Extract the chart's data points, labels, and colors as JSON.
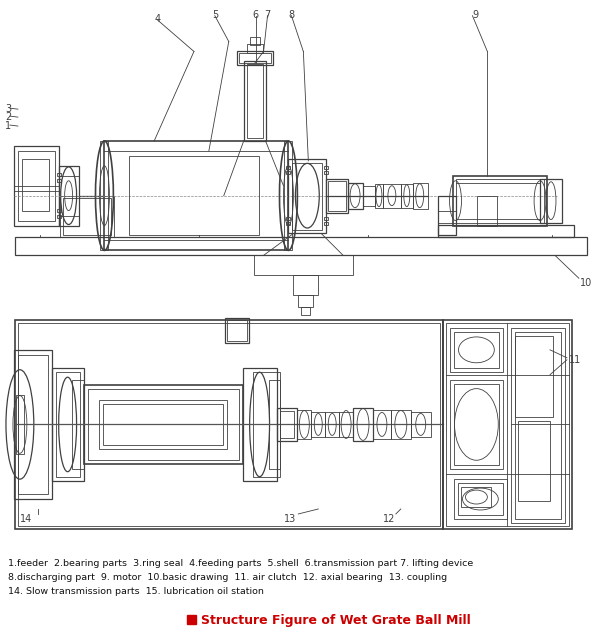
{
  "title": "Structure Figure of Wet Grate Ball Mill",
  "title_color": "#cc0000",
  "background_color": "#ffffff",
  "line_color": "#404040",
  "caption_lines": [
    "1.feeder  2.bearing parts  3.ring seal  4.feeding parts  5.shell  6.transmission part 7. lifting device",
    "8.discharging part  9. motor  10.basic drawing  11. air clutch  12. axial bearing  13. coupling",
    "14. Slow transmission parts  15. lubrication oil station"
  ],
  "figsize": [
    6.06,
    6.44
  ],
  "dpi": 100
}
